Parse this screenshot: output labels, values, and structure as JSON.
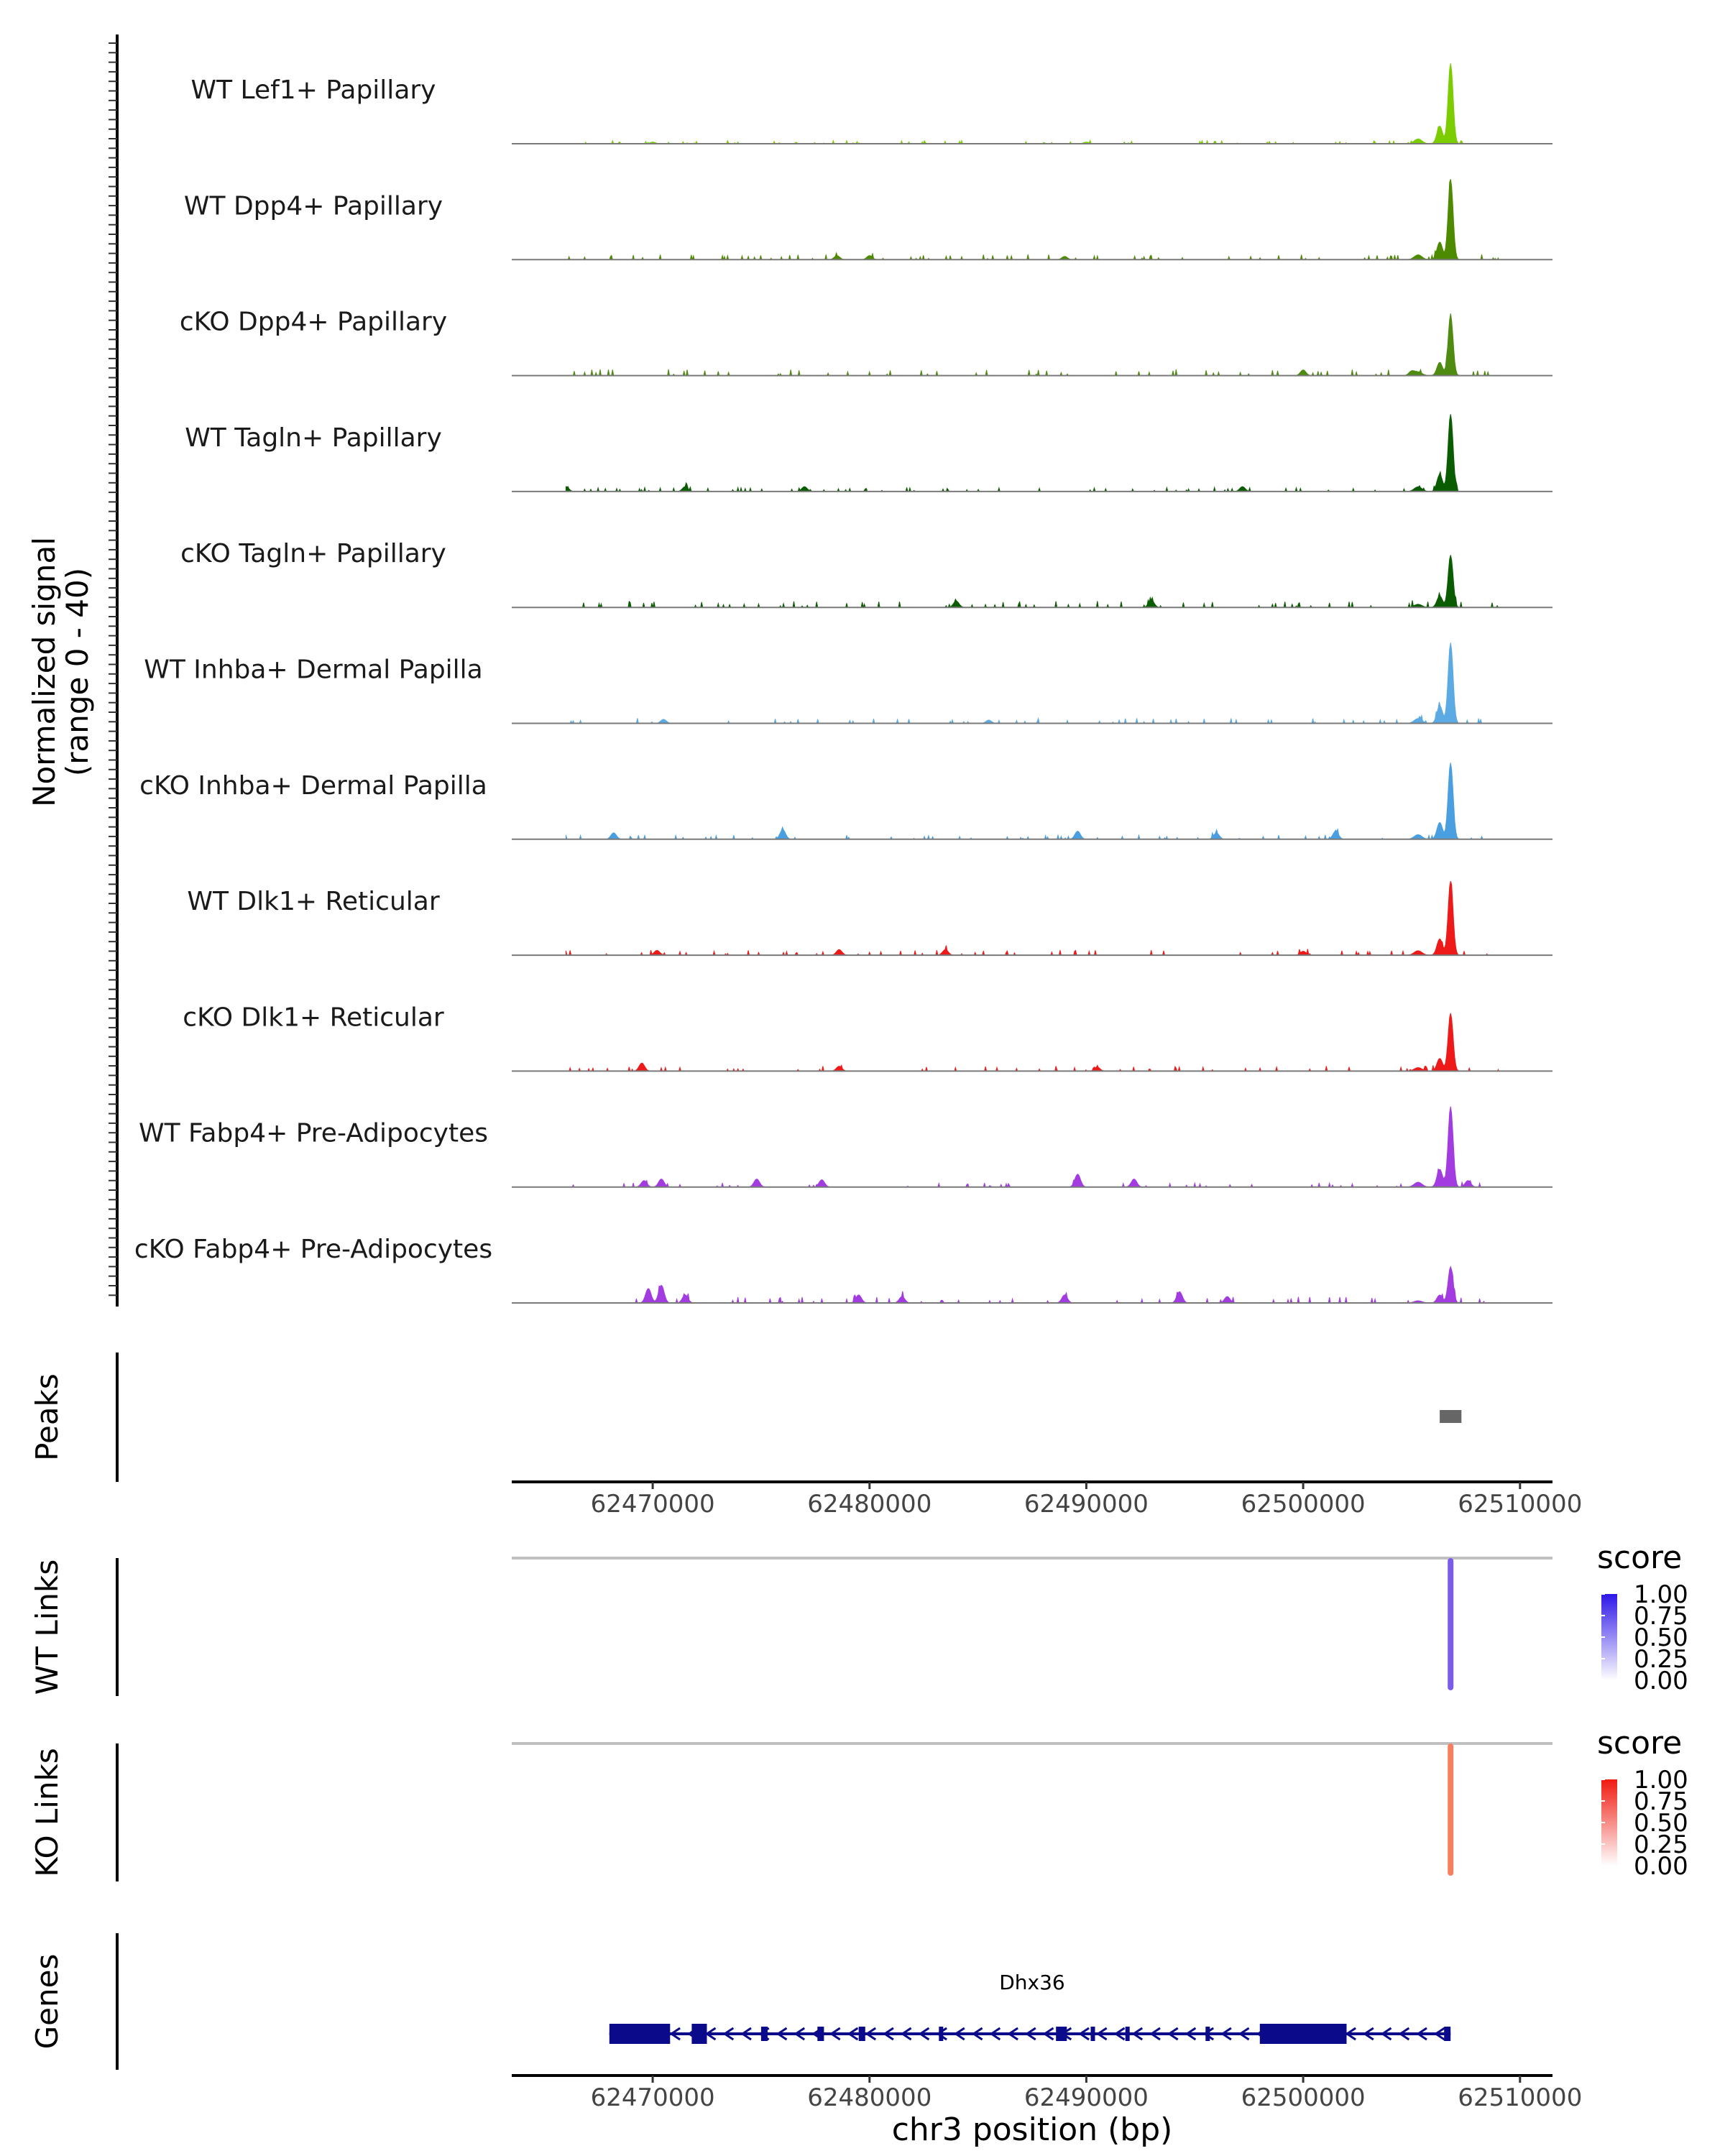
{
  "chart_data": {
    "type": "area",
    "title": "",
    "chromosome": "chr3",
    "xlabel": "chr3 position (bp)",
    "xlim": [
      62463500,
      62511500
    ],
    "x_ticks": [
      62470000,
      62480000,
      62490000,
      62500000,
      62510000
    ],
    "x_tick_labels": [
      "62470000",
      "62480000",
      "62490000",
      "62500000",
      "62510000"
    ],
    "coverage_ylabel": [
      "Normalized signal",
      "(range 0 - 40)"
    ],
    "coverage_range": [
      0,
      40
    ],
    "peak_center": 62506800,
    "tracks": [
      {
        "name": "WT Lef1+ Papillary",
        "color": "#7CCD00",
        "peak": 1.0,
        "noise": 0.03,
        "bumps": [
          [
            62470000,
            0.02
          ],
          [
            62490000,
            0.02
          ]
        ]
      },
      {
        "name": "WT Dpp4+ Papillary",
        "color": "#4D8A00",
        "peak": 1.0,
        "noise": 0.05,
        "bumps": [
          [
            62478500,
            0.05
          ],
          [
            62480000,
            0.05
          ],
          [
            62489000,
            0.04
          ]
        ]
      },
      {
        "name": "cKO Dpp4+ Papillary",
        "color": "#4F8B10",
        "peak": 0.75,
        "noise": 0.06,
        "bumps": [
          [
            62500000,
            0.07
          ],
          [
            62505000,
            0.05
          ]
        ]
      },
      {
        "name": "WT Tagln+ Papillary",
        "color": "#0A5C00",
        "peak": 0.96,
        "noise": 0.04,
        "bumps": [
          [
            62466000,
            0.06
          ],
          [
            62471500,
            0.06
          ],
          [
            62477000,
            0.06
          ],
          [
            62497200,
            0.06
          ]
        ]
      },
      {
        "name": "cKO Tagln+ Papillary",
        "color": "#0A5C00",
        "peak": 0.65,
        "noise": 0.06,
        "bumps": [
          [
            62484000,
            0.08
          ],
          [
            62493000,
            0.09
          ]
        ]
      },
      {
        "name": "WT Inhba+ Dermal Papilla",
        "color": "#5BAAE3",
        "peak": 1.0,
        "noise": 0.05,
        "bumps": [
          [
            62470500,
            0.05
          ],
          [
            62485500,
            0.04
          ]
        ]
      },
      {
        "name": "cKO Inhba+ Dermal Papilla",
        "color": "#4A9FE0",
        "peak": 0.95,
        "noise": 0.04,
        "bumps": [
          [
            62468200,
            0.08
          ],
          [
            62476000,
            0.12
          ],
          [
            62489600,
            0.1
          ],
          [
            62501500,
            0.1
          ],
          [
            62496000,
            0.08
          ]
        ]
      },
      {
        "name": "WT Dlk1+ Reticular",
        "color": "#EE1A1A",
        "peak": 0.92,
        "noise": 0.05,
        "bumps": [
          [
            62470200,
            0.06
          ],
          [
            62478600,
            0.07
          ],
          [
            62483500,
            0.07
          ],
          [
            62500000,
            0.05
          ]
        ]
      },
      {
        "name": "cKO Dlk1+ Reticular",
        "color": "#EE1A1A",
        "peak": 0.72,
        "noise": 0.05,
        "bumps": [
          [
            62469500,
            0.1
          ],
          [
            62478600,
            0.06
          ],
          [
            62490500,
            0.05
          ]
        ]
      },
      {
        "name": "WT Fabp4+ Pre-Adipocytes",
        "color": "#A23BE0",
        "peak": 1.0,
        "noise": 0.04,
        "bumps": [
          [
            62469600,
            0.08
          ],
          [
            62470400,
            0.1
          ],
          [
            62474800,
            0.1
          ],
          [
            62477800,
            0.09
          ],
          [
            62489600,
            0.16
          ],
          [
            62492200,
            0.1
          ],
          [
            62507600,
            0.08
          ]
        ]
      },
      {
        "name": "cKO Fabp4+ Pre-Adipocytes",
        "color": "#A23BE0",
        "peak": 0.45,
        "noise": 0.06,
        "bumps": [
          [
            62469800,
            0.18
          ],
          [
            62470400,
            0.22
          ],
          [
            62471500,
            0.1
          ],
          [
            62479500,
            0.1
          ],
          [
            62481500,
            0.08
          ],
          [
            62489000,
            0.1
          ],
          [
            62494300,
            0.14
          ],
          [
            62496500,
            0.08
          ]
        ]
      }
    ],
    "peaks_label": "Peaks",
    "peaks": [
      {
        "start": 62506300,
        "end": 62507300,
        "color": "#666666"
      }
    ],
    "links": [
      {
        "label": "WT Links",
        "position": 62506800,
        "score": 0.75,
        "color": "#7A5CE8",
        "legend_title": "score",
        "legend_color": "#2E17E8"
      },
      {
        "label": "KO Links",
        "position": 62506800,
        "score": 0.7,
        "color": "#F48060",
        "legend_title": "score",
        "legend_color": "#F01A10"
      }
    ],
    "legend_ticks": [
      "1.00",
      "0.75",
      "0.50",
      "0.25",
      "0.00"
    ],
    "genes_label": "Genes",
    "gene": {
      "name": "Dhx36",
      "start": 62468000,
      "end": 62506800,
      "strand": "-",
      "color": "#0A0A8A",
      "exons": [
        [
          62468000,
          62470800
        ],
        [
          62471800,
          62472500
        ],
        [
          62475000,
          62475300
        ],
        [
          62477600,
          62477900
        ],
        [
          62479500,
          62479800
        ],
        [
          62483200,
          62483400
        ],
        [
          62488600,
          62489100
        ],
        [
          62490200,
          62490400
        ],
        [
          62491800,
          62492000
        ],
        [
          62495500,
          62495700
        ],
        [
          62498000,
          62502000
        ],
        [
          62506500,
          62506800
        ]
      ]
    }
  }
}
